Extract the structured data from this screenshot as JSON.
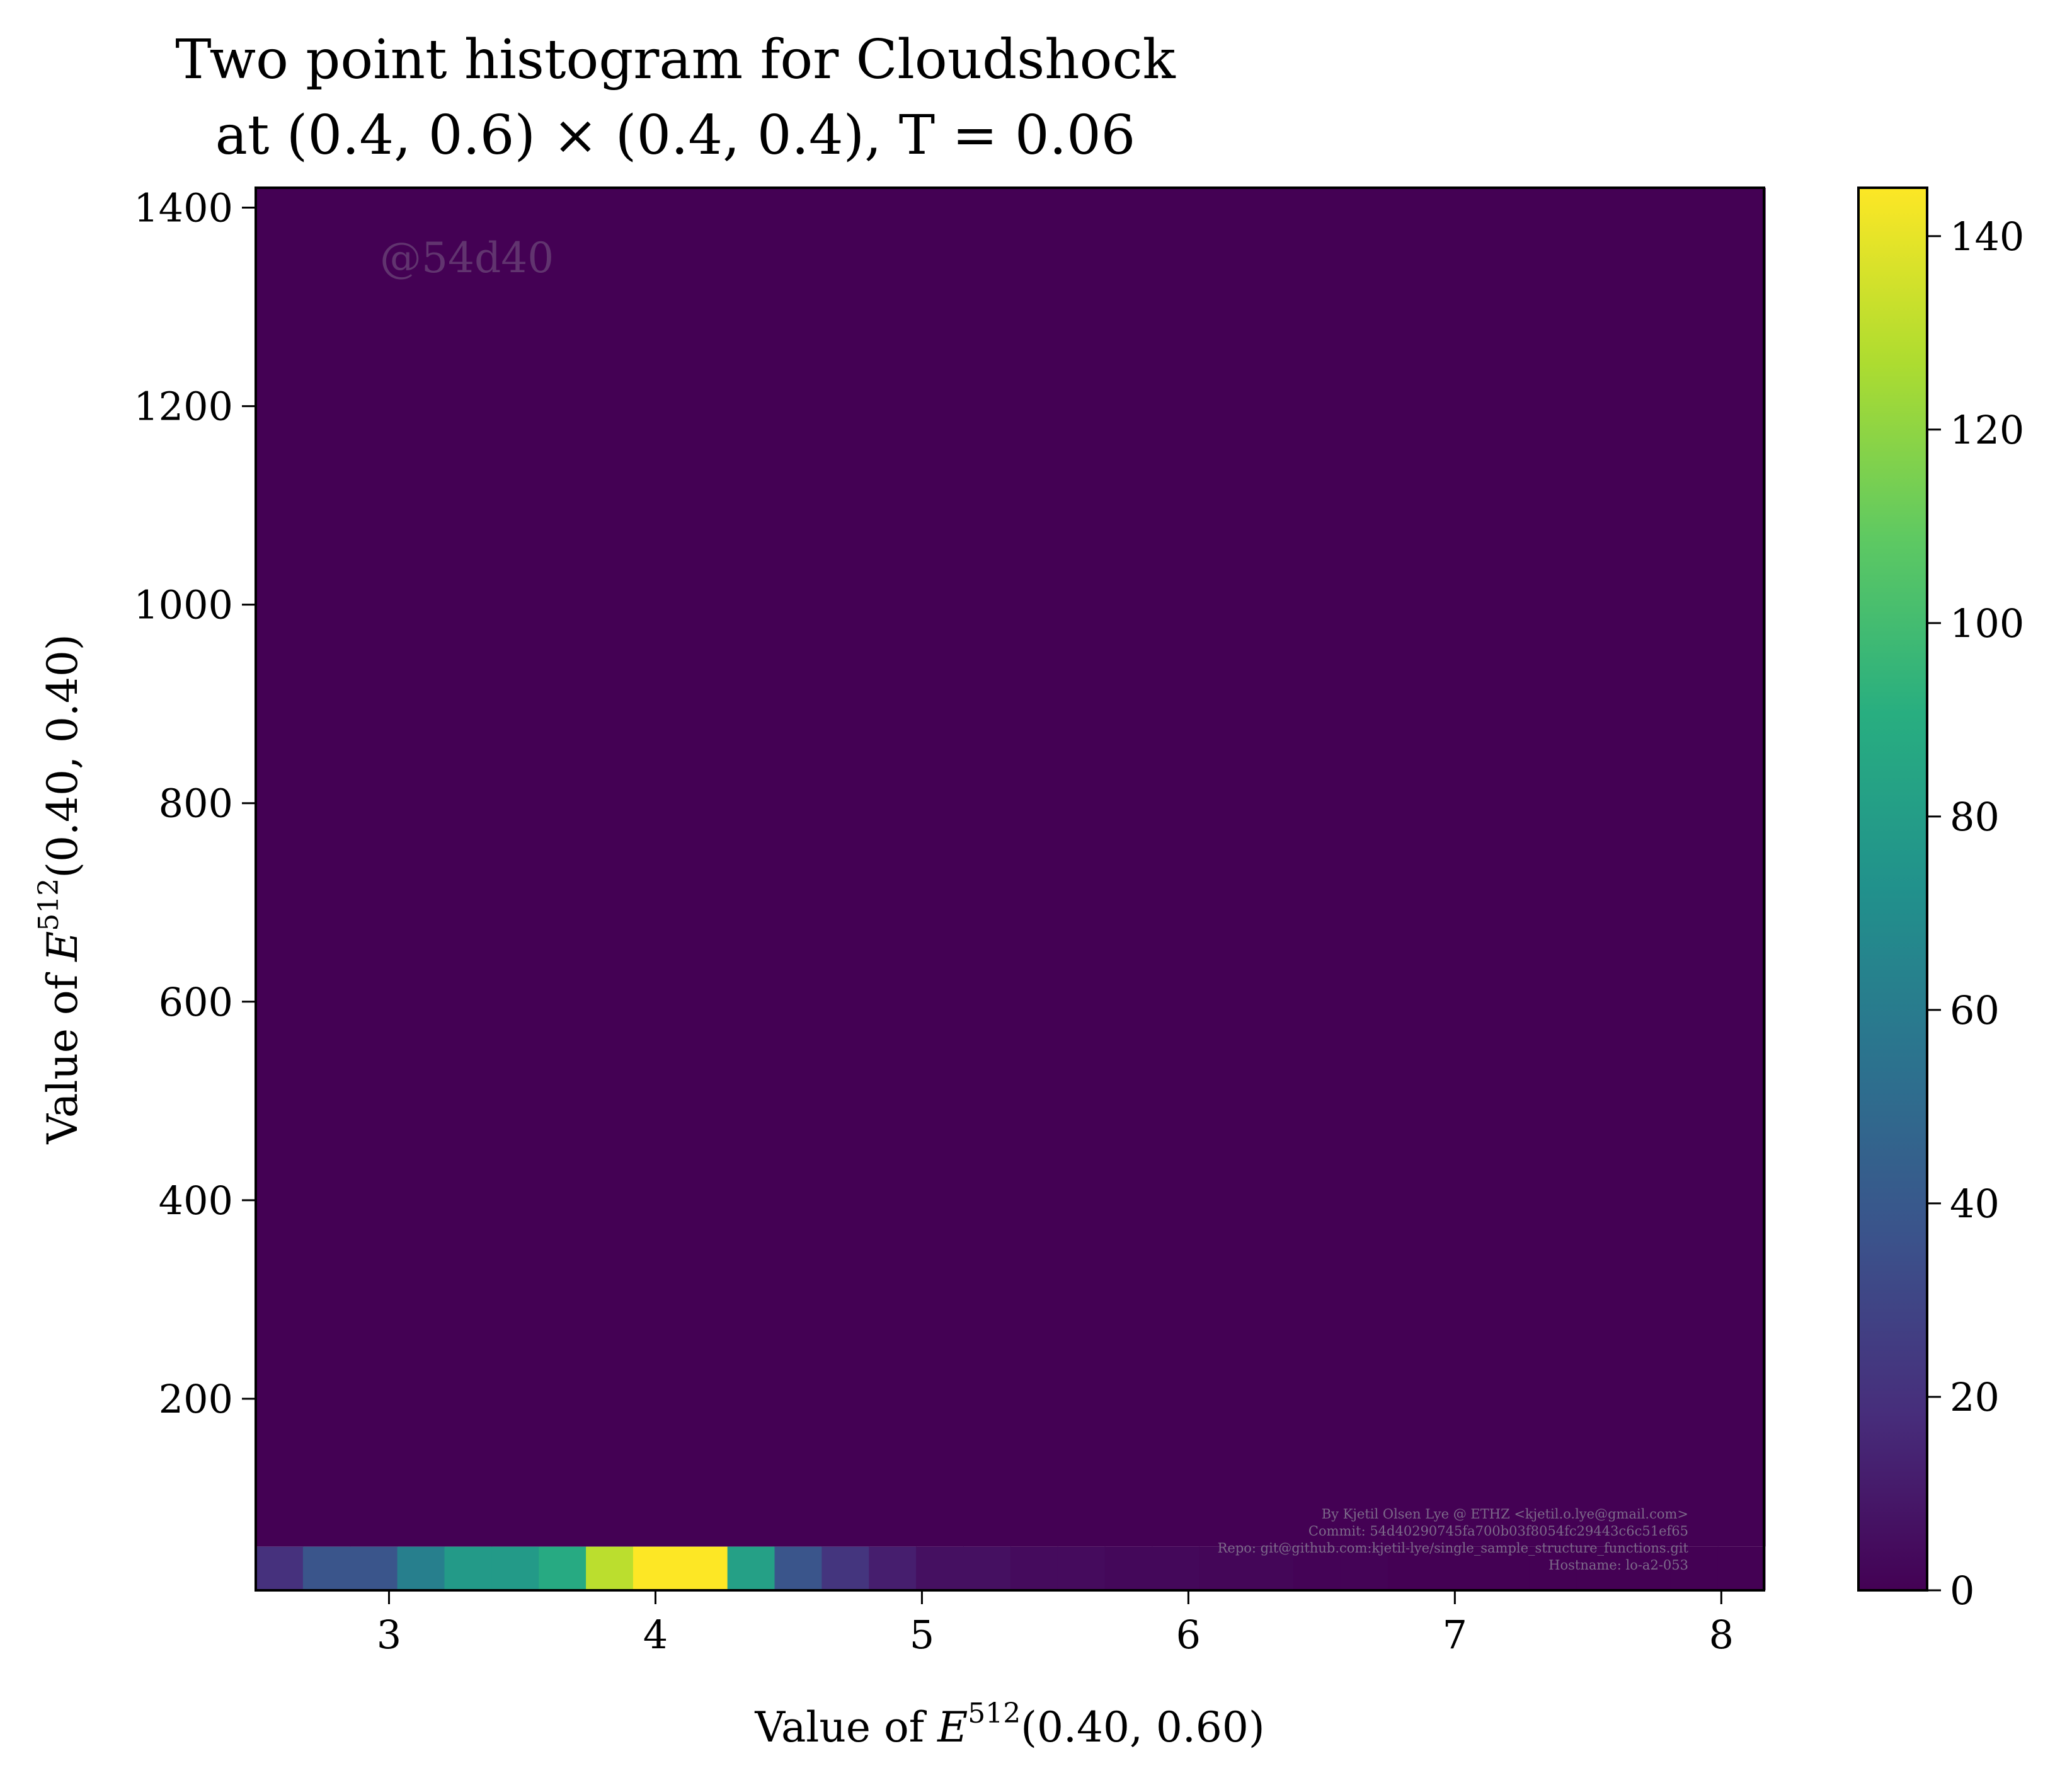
{
  "chart_data": {
    "type": "heatmap",
    "title_line1": "Two point histogram for Cloudshock",
    "title_line2": "at (0.4, 0.6) × (0.4, 0.4), T = 0.06",
    "xlabel_prefix": "Value of ",
    "xlabel_var": "E",
    "xlabel_sup": "512",
    "xlabel_suffix": "(0.40, 0.60)",
    "ylabel_prefix": "Value of ",
    "ylabel_var": "E",
    "ylabel_sup": "512",
    "ylabel_suffix": "(0.40, 0.40)",
    "xlim": [
      2.5,
      8.16
    ],
    "ylim": [
      7,
      1420
    ],
    "xticks": [
      3,
      4,
      5,
      6,
      7,
      8
    ],
    "yticks": [
      200,
      400,
      600,
      800,
      1000,
      1200,
      1400
    ],
    "x_bin_edges": [
      2.5,
      2.677,
      2.854,
      3.031,
      3.208,
      3.385,
      3.562,
      3.739,
      3.916,
      4.093,
      4.27,
      4.447,
      4.624,
      4.801,
      4.978,
      5.155,
      5.332,
      5.509,
      5.686,
      5.863,
      6.04,
      6.217,
      6.394,
      6.571,
      6.748,
      6.925,
      7.102,
      7.279,
      7.456,
      7.633,
      7.81,
      7.987,
      8.164
    ],
    "y_bin_edges": [
      7,
      51,
      1420
    ],
    "bottom_row_counts": [
      20,
      38,
      38,
      62,
      78,
      78,
      88,
      130,
      145,
      145,
      82,
      38,
      22,
      12,
      6,
      6,
      4,
      4,
      3,
      3,
      2,
      2,
      1,
      1,
      0,
      0,
      0,
      0,
      0,
      0,
      0,
      0
    ],
    "upper_row_count": 0,
    "colorbar": {
      "colormap": "viridis",
      "min": 0,
      "max": 145,
      "ticks": [
        0,
        20,
        40,
        60,
        80,
        100,
        120,
        140
      ]
    },
    "watermark": "@54d40",
    "credit_lines": [
      "By Kjetil Olsen Lye @ ETHZ <kjetil.o.lye@gmail.com>",
      "Commit: 54d40290745fa700b03f8054fc29443c6c51ef65",
      "Repo: git@github.com:kjetil-lye/single_sample_structure_functions.git",
      "Hostname: lo-a2-053"
    ]
  }
}
